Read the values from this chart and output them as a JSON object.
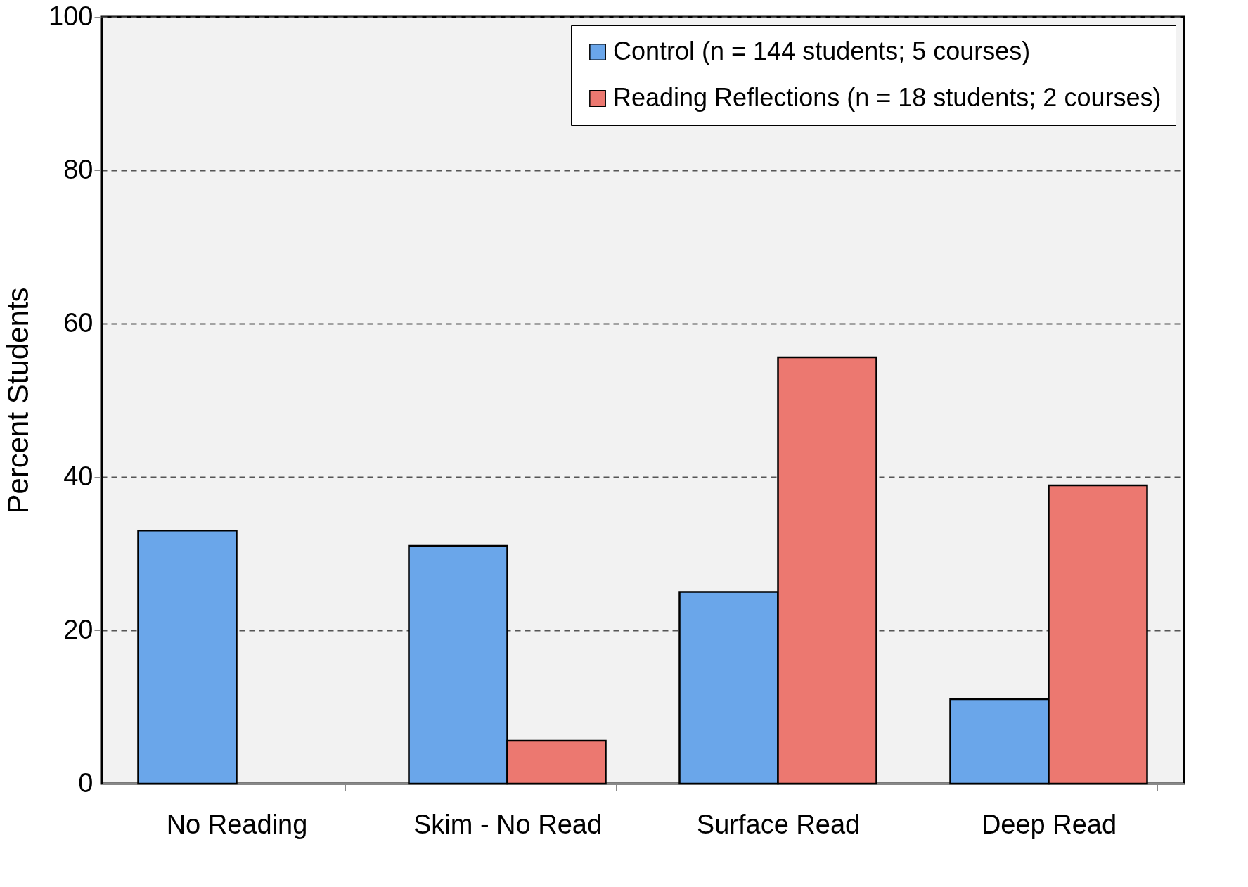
{
  "chart_data": {
    "type": "bar",
    "ylabel": "Percent Students",
    "categories": [
      "No Reading",
      "Skim - No Read",
      "Surface Read",
      "Deep Read"
    ],
    "series": [
      {
        "name": "Control (n = 144 students; 5 courses)",
        "color": "#6aa6ea",
        "values": [
          33,
          31,
          25,
          11
        ]
      },
      {
        "name": "Reading Reflections (n = 18 students; 2 courses)",
        "color": "#ec7870",
        "values": [
          null,
          5.6,
          55.6,
          38.9
        ]
      }
    ],
    "ylim": [
      0,
      100
    ],
    "yticks": [
      0,
      20,
      40,
      60,
      80,
      100
    ],
    "grid": "y",
    "legend": "top right"
  }
}
